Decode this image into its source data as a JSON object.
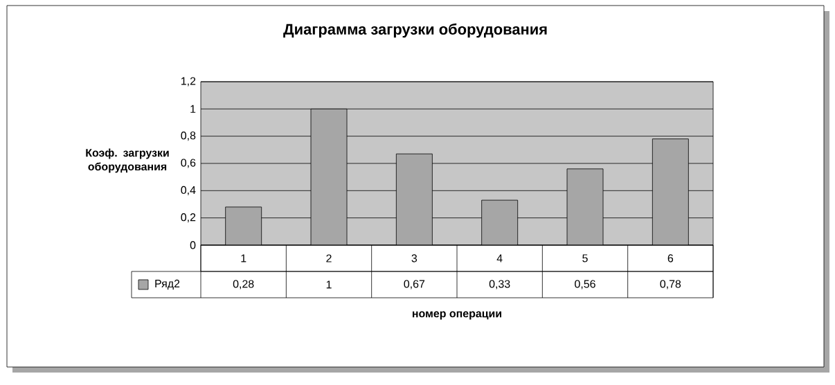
{
  "chart_data": {
    "type": "bar",
    "title": "Диаграмма загрузки оборудования",
    "xlabel": "номер операции",
    "ylabel": "Коэф. загрузки оборудования",
    "categories": [
      "1",
      "2",
      "3",
      "4",
      "5",
      "6"
    ],
    "series": [
      {
        "name": "Ряд2",
        "color": "#a6a6a6",
        "values": [
          0.28,
          1,
          0.67,
          0.33,
          0.56,
          0.78
        ],
        "value_labels": [
          "0,28",
          "1",
          "0,67",
          "0,33",
          "0,56",
          "0,78"
        ]
      }
    ],
    "ylim": [
      0,
      1.2
    ],
    "yticks": [
      0,
      {
        "value": 0.2,
        "label": "0,2"
      },
      {
        "value": 0.4,
        "label": "0,4"
      },
      {
        "value": 0.6,
        "label": "0,6"
      },
      {
        "value": 0.8,
        "label": "0,8"
      },
      1,
      {
        "value": 1.2,
        "label": "1,2"
      }
    ],
    "grid": "y"
  }
}
